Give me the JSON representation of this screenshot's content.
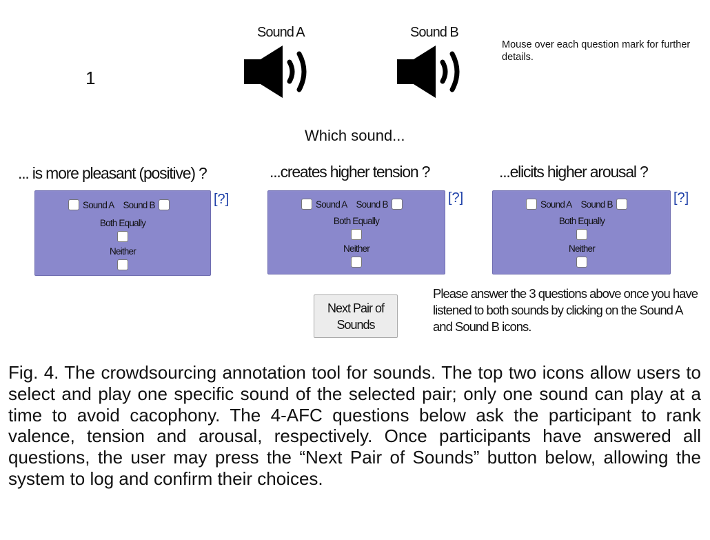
{
  "counter": "1",
  "sounds": [
    {
      "label": "Sound A"
    },
    {
      "label": "Sound B"
    }
  ],
  "hint": "Mouse over each question mark for further details.",
  "prompt": "Which sound...",
  "questions": [
    {
      "title": "... is more pleasant (positive) ?",
      "help": "[?]",
      "opt_a": "Sound A",
      "opt_b": "Sound B",
      "opt_both": "Both Equally",
      "opt_neither": "Neither"
    },
    {
      "title": "...creates higher tension ?",
      "help": "[?]",
      "opt_a": "Sound A",
      "opt_b": "Sound B",
      "opt_both": "Both Equally",
      "opt_neither": "Neither"
    },
    {
      "title": "...elicits higher arousal ?",
      "help": "[?]",
      "opt_a": "Sound A",
      "opt_b": "Sound B",
      "opt_both": "Both Equally",
      "opt_neither": "Neither"
    }
  ],
  "next_button": "Next Pair of Sounds",
  "instructions": "Please answer the 3 questions above once you have listened to both sounds by clicking on the Sound A and Sound B icons.",
  "caption": "Fig. 4. The crowdsourcing annotation tool for sounds. The top two icons allow users to select and play one specific sound of the selected pair; only one sound can play at a time to avoid cacophony. The 4-AFC questions below ask the participant to rank valence, tension and arousal, respectively. Once participants have answered all questions, the user may press the “Next Pair of Sounds” button below, allowing the system to log and confirm their choices.",
  "icons": {
    "speaker": "speaker-volume-icon",
    "checkbox": "checkbox"
  },
  "colors": {
    "question_box": "#8a88cc",
    "help_link": "#1d3fa8"
  }
}
